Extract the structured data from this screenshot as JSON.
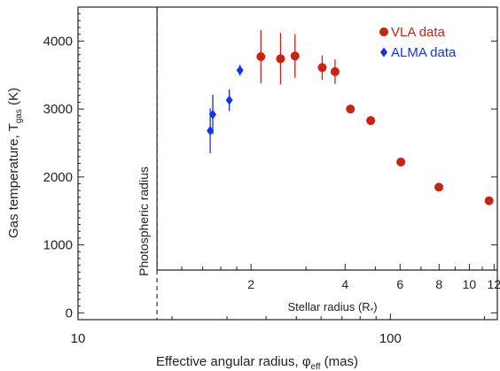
{
  "chart_data": {
    "type": "scatter",
    "xlabel": "Effective angular radius, φ",
    "xlabel_sub": "eff",
    "xlabel_unit": " (mas)",
    "ylabel": "Gas temperature, T",
    "ylabel_sub": "gas",
    "ylabel_unit": " (K)",
    "x_scale": "log",
    "xlim": [
      10,
      220
    ],
    "ylim": [
      -100,
      4500
    ],
    "x_ticks": [
      10,
      100
    ],
    "x_tick_labels": [
      "10",
      "100"
    ],
    "y_ticks": [
      0,
      1000,
      2000,
      3000,
      4000
    ],
    "y_tick_labels": [
      "0",
      "1000",
      "2000",
      "3000",
      "4000"
    ],
    "secondary_axis": {
      "label": "Stellar radius (R",
      "label_sub": "*",
      "label_end": ")",
      "scale": "log",
      "mas_per_stellar_radius": 17.9,
      "ticks": [
        2,
        4,
        6,
        8,
        10,
        12
      ],
      "tick_labels": [
        "2",
        "4",
        "6",
        "8",
        "10",
        "12"
      ]
    },
    "photospheric_radius": {
      "x": 17.9,
      "label": "Photospheric radius"
    },
    "grid": false,
    "legend_position": "top-right",
    "series": [
      {
        "name": "VLA data",
        "color": "#cc2211",
        "marker": "circle",
        "points": [
          {
            "x": 38.5,
            "y": 3770,
            "err": 390
          },
          {
            "x": 44.5,
            "y": 3740,
            "err": 380
          },
          {
            "x": 49.5,
            "y": 3780,
            "err": 320
          },
          {
            "x": 60.5,
            "y": 3610,
            "err": 180
          },
          {
            "x": 66.5,
            "y": 3550,
            "err": 180
          },
          {
            "x": 74.5,
            "y": 3000,
            "err": 0
          },
          {
            "x": 86.5,
            "y": 2830,
            "err": 0
          },
          {
            "x": 108,
            "y": 2220,
            "err": 0
          },
          {
            "x": 143,
            "y": 1850,
            "err": 0
          },
          {
            "x": 207,
            "y": 1650,
            "err": 0
          }
        ]
      },
      {
        "name": "ALMA data",
        "color": "#1133ee",
        "marker": "diamond",
        "points": [
          {
            "x": 26.5,
            "y": 2680,
            "err": 330
          },
          {
            "x": 27.0,
            "y": 2920,
            "err": 290
          },
          {
            "x": 30.5,
            "y": 3130,
            "err": 160
          },
          {
            "x": 33.0,
            "y": 3570,
            "err": 80
          }
        ]
      }
    ]
  }
}
